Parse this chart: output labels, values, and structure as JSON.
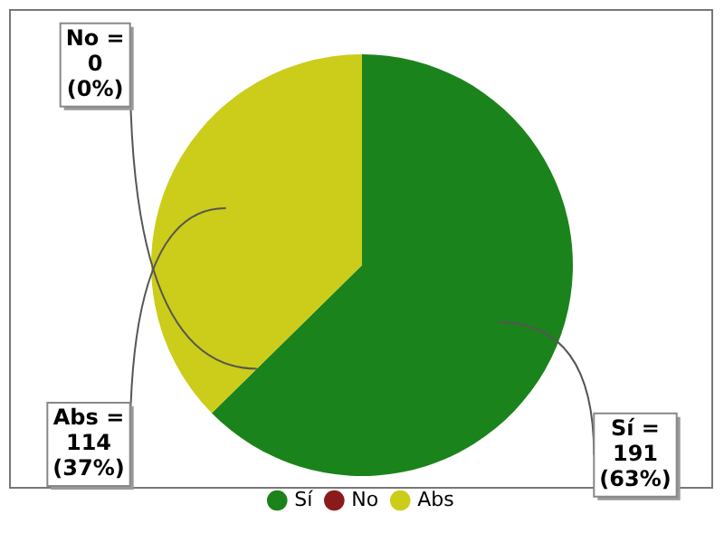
{
  "chart_data": {
    "type": "pie",
    "categories": [
      "Sí",
      "No",
      "Abs"
    ],
    "values": [
      191,
      0,
      114
    ],
    "colors": [
      "#1b831b",
      "#8b1a1a",
      "#cccc1a"
    ],
    "value_labels": [
      "Sí = 191 (63%)",
      "No = 0 (0%)",
      "Abs = 114 (37%)"
    ],
    "legend": "bottom"
  }
}
